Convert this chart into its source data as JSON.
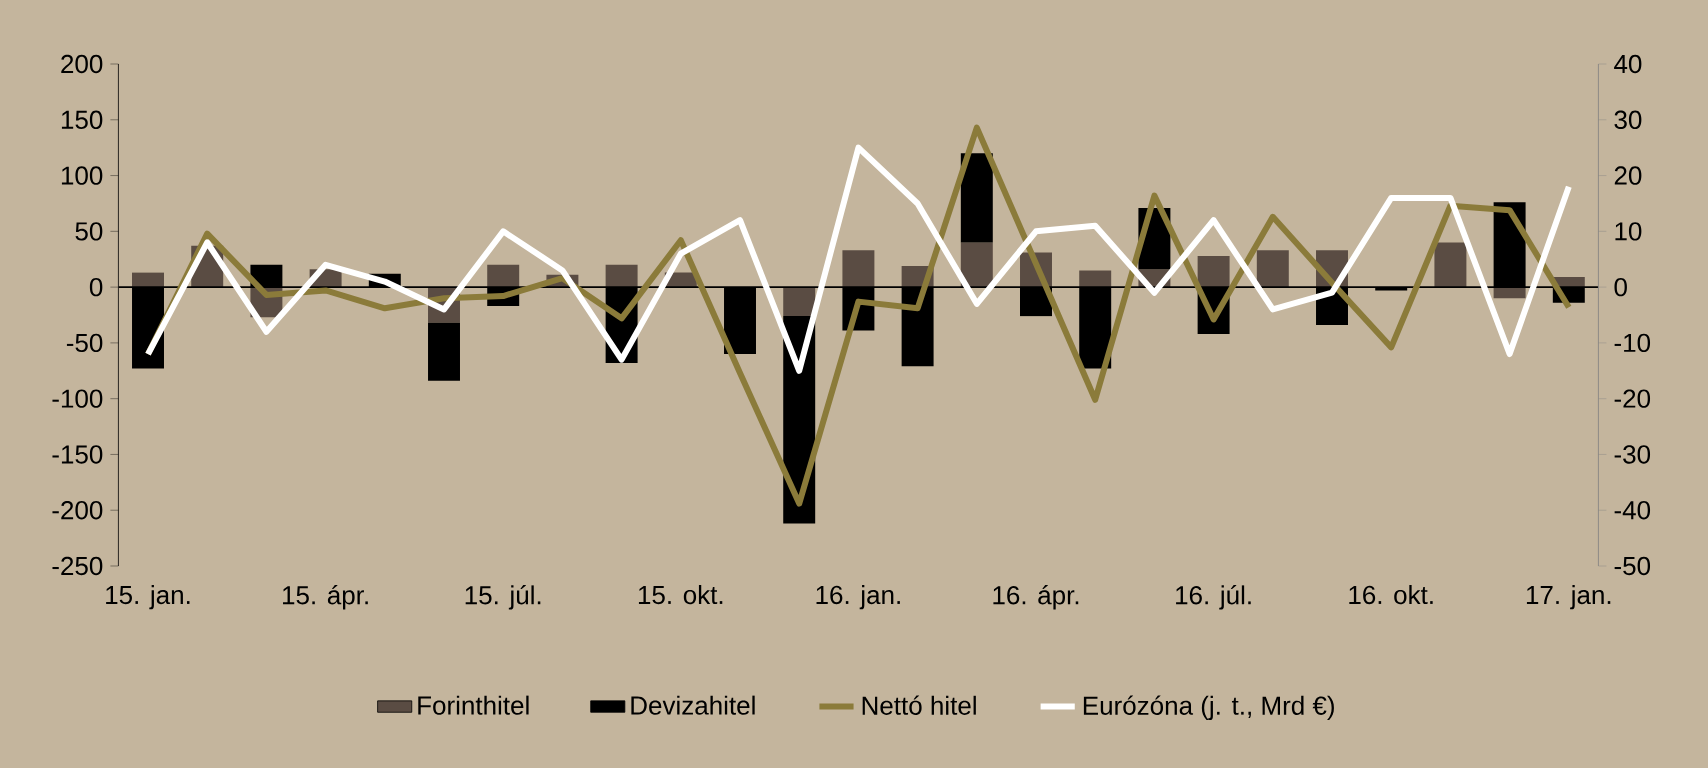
{
  "chart_data": {
    "type": "bar",
    "stacked": true,
    "categories": [
      "15. jan.",
      null,
      null,
      "15. ápr.",
      null,
      null,
      "15. júl.",
      null,
      null,
      "15. okt.",
      null,
      null,
      "16. jan.",
      null,
      null,
      "16. ápr.",
      null,
      null,
      "16. júl.",
      null,
      null,
      "16. okt.",
      null,
      null,
      "17. jan."
    ],
    "series": [
      {
        "name": "Forinthitel",
        "color": "#5a4c43",
        "values": [
          13,
          37,
          -27,
          16,
          null,
          -32,
          20,
          11,
          20,
          13,
          null,
          -26,
          33,
          19,
          40,
          31,
          15,
          16,
          28,
          33,
          33,
          null,
          40,
          -10,
          9
        ]
      },
      {
        "name": "Devizahitel",
        "color": "#000000",
        "values": [
          -73,
          null,
          20,
          null,
          12,
          -52,
          -17,
          null,
          -68,
          null,
          -60,
          -186,
          -39,
          -71,
          80,
          -26,
          -73,
          55,
          -42,
          null,
          -34,
          -3,
          null,
          76,
          -14
        ]
      },
      {
        "name": "Nettó hitel",
        "type": "line",
        "color": "#8b7b3a",
        "values": [
          -60,
          48,
          -7,
          -3,
          -19,
          -10,
          -8,
          8,
          -28,
          42,
          -77,
          -194,
          -13,
          -19,
          143,
          21,
          -101,
          82,
          -29,
          63,
          4,
          -54,
          73,
          69,
          -18
        ]
      },
      {
        "name": "Eurózóna (j. t., Mrd €)",
        "type": "line",
        "axis": "y2",
        "color": "#ffffff",
        "values": [
          -12,
          8,
          -8,
          4,
          1,
          -4,
          10,
          3,
          -13,
          6,
          12,
          -15,
          25,
          15,
          -3,
          10,
          11,
          -1,
          12,
          -4,
          -1,
          16,
          16,
          -12,
          18
        ]
      }
    ],
    "ylim": [
      -250,
      200
    ],
    "yticks": [
      -250,
      -200,
      -150,
      -100,
      -50,
      0,
      50,
      100,
      150,
      200
    ],
    "y2lim": [
      -50,
      40
    ],
    "y2ticks": [
      -50,
      -40,
      -30,
      -20,
      -10,
      0,
      10,
      20,
      30,
      40
    ],
    "legend": "bottom",
    "line_style": "solid"
  }
}
